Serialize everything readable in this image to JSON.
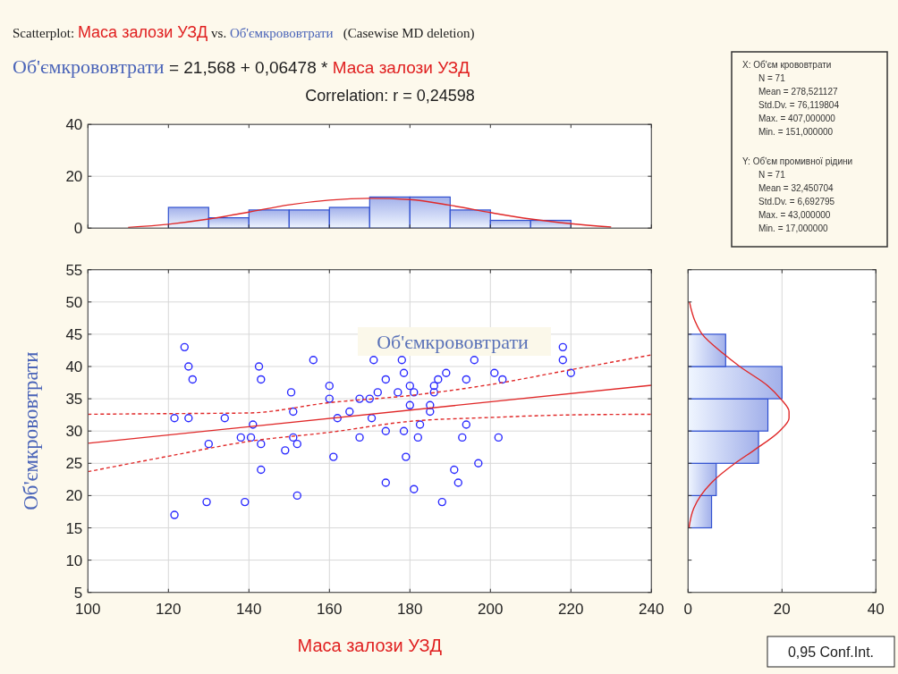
{
  "chart_data": [
    {
      "type": "histogram",
      "title": "Scatterplot: Маса залози УЗД vs. Об'ємкрововтрати   (Casewise MD deletion)",
      "subtitle": "Об'ємкрововтрати = 21,568 + 0,06478 * Маса залози УЗД",
      "annotations": [
        "Correlation: r = 0,24598"
      ],
      "xlim": [
        100,
        240
      ],
      "xticks": [
        100,
        120,
        140,
        160,
        180,
        200,
        220,
        240
      ],
      "ylim": [
        0,
        40
      ],
      "yticks": [
        0,
        20,
        40
      ],
      "tick_labels": "y",
      "grid": "y",
      "bins": [
        120,
        130,
        140,
        150,
        160,
        170,
        180,
        190,
        200,
        210,
        220
      ],
      "series": [
        {
          "type": "histogram",
          "color": "#3050d0",
          "values": [
            8,
            4,
            7,
            7,
            8,
            12,
            12,
            7,
            3,
            3
          ]
        },
        {
          "type": "line",
          "color": "#e02828",
          "x": [
            110,
            120,
            130,
            140,
            150,
            160,
            170,
            180,
            190,
            200,
            210,
            220,
            230
          ],
          "values": [
            0.3,
            1.5,
            3.5,
            6.2,
            9,
            10.8,
            11.5,
            11,
            8.8,
            6,
            3.5,
            1.7,
            0.4
          ]
        }
      ]
    },
    {
      "type": "scatter",
      "xlabel": "Маса залози УЗД",
      "ylabel": "Об'ємкрововтрати",
      "annotations": [
        "Об'ємкрововтрати",
        "0,95 Conf.Int."
      ],
      "xlim": [
        100,
        240
      ],
      "xticks": [
        100,
        120,
        140,
        160,
        180,
        200,
        220,
        240
      ],
      "ylim": [
        5,
        55
      ],
      "yticks": [
        5,
        10,
        15,
        20,
        25,
        30,
        35,
        40,
        45,
        50,
        55
      ],
      "grid": true,
      "series": [
        {
          "type": "scatter",
          "marker": "circle",
          "color": "#2a2aff",
          "x": [
            124,
            125,
            126,
            121.5,
            125,
            134,
            141,
            142.5,
            143,
            138,
            140.5,
            143,
            130,
            143,
            129.5,
            139,
            121.5,
            156,
            150.5,
            151,
            151,
            152,
            149,
            152,
            160,
            160,
            162,
            161,
            165,
            167.5,
            167.5,
            170,
            170.5,
            171,
            172,
            174,
            174,
            174,
            178,
            196,
            178.5,
            177,
            180,
            181,
            180,
            187,
            186,
            186,
            185,
            185,
            189,
            194,
            201,
            203,
            218,
            218,
            220,
            178.5,
            182,
            182.5,
            194,
            193,
            202,
            179,
            191,
            192,
            197,
            181,
            188
          ],
          "values": [
            43,
            40,
            38,
            32,
            32,
            32,
            31,
            40,
            38,
            29,
            29,
            28,
            28,
            24,
            19,
            19,
            17,
            41,
            36,
            33,
            29,
            28,
            27,
            20,
            37,
            35,
            32,
            26,
            33,
            35,
            29,
            35,
            32,
            41,
            36,
            38,
            30,
            22,
            41,
            41,
            39,
            36,
            37,
            36,
            34,
            38,
            37,
            36,
            34,
            33,
            39,
            38,
            39,
            38,
            43,
            41,
            39,
            30,
            29,
            31,
            31,
            29,
            29,
            26,
            24,
            22,
            25,
            21,
            19
          ]
        },
        {
          "type": "line",
          "marker": "none",
          "line_style": "solid",
          "color": "#e02828",
          "x": [
            100,
            240
          ],
          "values": [
            28.1,
            37.1
          ]
        },
        {
          "type": "line",
          "marker": "none",
          "line_style": "dashed",
          "color": "#e02828",
          "x": [
            100,
            120,
            140,
            160,
            180,
            200,
            220,
            240
          ],
          "values": [
            32.6,
            32.7,
            32.8,
            34.4,
            35.5,
            37.2,
            39.5,
            41.8
          ]
        },
        {
          "type": "line",
          "marker": "none",
          "line_style": "dashed",
          "color": "#e02828",
          "x": [
            100,
            120,
            140,
            160,
            180,
            200,
            220,
            240
          ],
          "values": [
            23.7,
            26.1,
            28.4,
            29.8,
            31.5,
            32.1,
            32.5,
            32.6
          ]
        }
      ]
    },
    {
      "type": "histogram",
      "orientation": "horizontal",
      "xlim": [
        0,
        40
      ],
      "xticks": [
        0,
        20,
        40
      ],
      "ylim": [
        5,
        55
      ],
      "yticks": [
        5,
        10,
        15,
        20,
        25,
        30,
        35,
        40,
        45,
        50,
        55
      ],
      "tick_labels": "x",
      "grid": "x",
      "bins": [
        15,
        20,
        25,
        30,
        35,
        40,
        45
      ],
      "series": [
        {
          "type": "histogram",
          "color": "#3050d0",
          "values": [
            5,
            6,
            15,
            17,
            20,
            8
          ]
        },
        {
          "type": "line",
          "color": "#e02828",
          "x": [
            50,
            47,
            45,
            42,
            40,
            37,
            35,
            33,
            32,
            30,
            27,
            25,
            22,
            20,
            18,
            15
          ],
          "values": [
            0.3,
            1.5,
            3,
            7.5,
            11,
            17,
            19.7,
            21.5,
            21.5,
            19.5,
            14,
            10,
            5,
            2.7,
            1.2,
            0.2
          ]
        }
      ]
    },
    {
      "type": "other",
      "annotations": [
        "X:  Об'єм крововтрати",
        "N = 71",
        "Mean = 278,521127",
        "Std.Dv. = 76,119804",
        "Max. = 407,000000",
        "Min. = 151,000000",
        "Y:  Об'єм промивної рідини",
        "N = 71",
        "Mean = 32,450704",
        "Std.Dv. = 6,692795",
        "Max. = 43,000000",
        "Min. = 17,000000"
      ]
    }
  ]
}
